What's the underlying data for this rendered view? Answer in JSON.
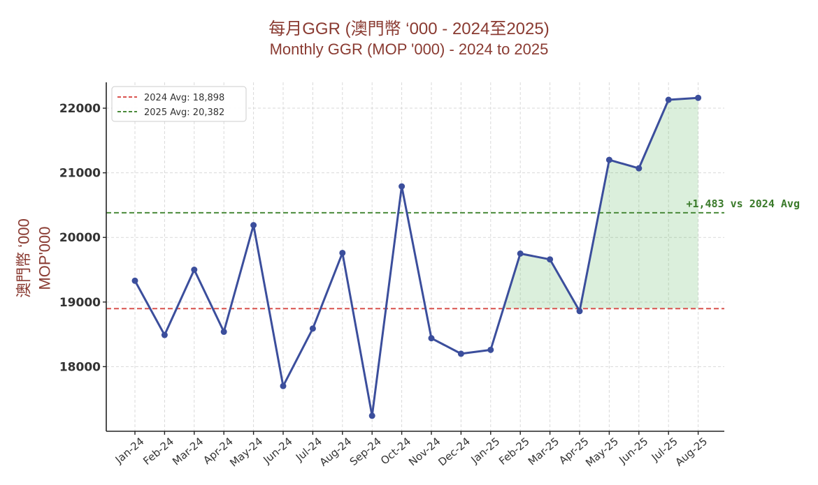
{
  "chart_data": {
    "type": "line",
    "title": "每月GGR (澳門幣 ‘000 - 2024至2025)",
    "subtitle": "Monthly GGR (MOP '000) - 2024 to 2025",
    "xlabel": "",
    "ylabel": "澳門幣 ‘000",
    "ylabel2": "MOP'000",
    "categories": [
      "Jan-24",
      "Feb-24",
      "Mar-24",
      "Apr-24",
      "May-24",
      "Jun-24",
      "Jul-24",
      "Aug-24",
      "Sep-24",
      "Oct-24",
      "Nov-24",
      "Dec-24",
      "Jan-25",
      "Feb-25",
      "Mar-25",
      "Apr-25",
      "May-25",
      "Jun-25",
      "Jul-25",
      "Aug-25"
    ],
    "series": [
      {
        "values": [
          19330,
          18490,
          19500,
          18540,
          20190,
          17700,
          18590,
          19760,
          17240,
          20790,
          18440,
          18200,
          18260,
          19750,
          19660,
          18860,
          21200,
          21070,
          22130,
          22160
        ],
        "color": "#3b4e9c"
      }
    ],
    "ylim": [
      17000,
      22400
    ],
    "yticks": [
      18000,
      19000,
      20000,
      21000,
      22000
    ],
    "reference_lines": [
      {
        "label": "2024 Avg: 18,898",
        "value": 18898,
        "color": "#d9534f",
        "style": "dashed"
      },
      {
        "label": "2025 Avg: 20,382",
        "value": 20382,
        "color": "#4a8a3a",
        "style": "dashed"
      }
    ],
    "fill_between": {
      "from": "Jan-25",
      "to": "Aug-25",
      "baseline": 18898,
      "color": "#4caf50"
    },
    "annotation": {
      "text": "+1,483 vs 2024 Avg",
      "color": "#3a7a2a"
    },
    "grid": true,
    "legend_position": "top-left"
  }
}
